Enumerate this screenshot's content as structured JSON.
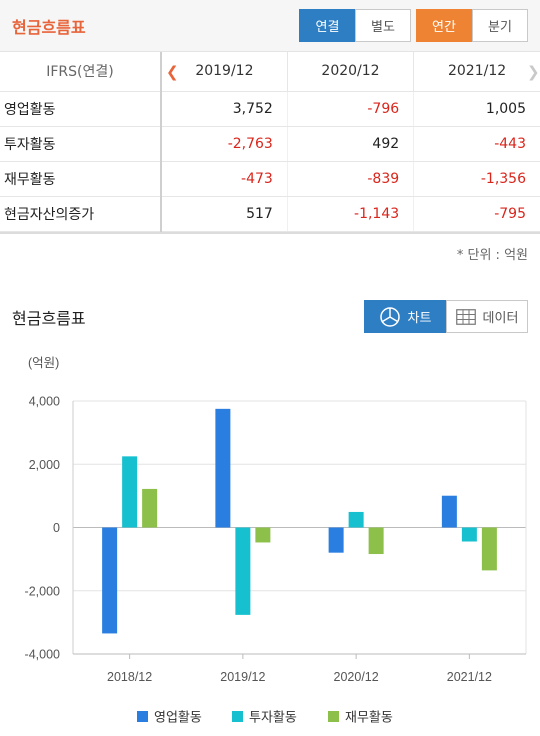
{
  "header": {
    "title": "현금흐름표",
    "consolidation_tabs": [
      {
        "label": "연결",
        "active": true
      },
      {
        "label": "별도",
        "active": false
      }
    ],
    "period_tabs": [
      {
        "label": "연간",
        "active": true
      },
      {
        "label": "분기",
        "active": false
      }
    ]
  },
  "table": {
    "header_label": "IFRS(연결)",
    "columns": [
      "2019/12",
      "2020/12",
      "2021/12"
    ],
    "rows": [
      {
        "label": "영업활동",
        "values": [
          "3,752",
          "-796",
          "1,005"
        ]
      },
      {
        "label": "투자활동",
        "values": [
          "-2,763",
          "492",
          "-443"
        ]
      },
      {
        "label": "재무활동",
        "values": [
          "-473",
          "-839",
          "-1,356"
        ]
      },
      {
        "label": "현금자산의증가",
        "values": [
          "517",
          "-1,143",
          "-795"
        ]
      }
    ],
    "prev_icon": "chevron-left-icon",
    "next_icon": "chevron-right-icon"
  },
  "unit_note": "* 단위 : 억원",
  "chart_section": {
    "title": "현금흐름표",
    "toggle": [
      {
        "label": "차트",
        "icon": "pie-chart-icon",
        "active": true
      },
      {
        "label": "데이터",
        "icon": "table-grid-icon",
        "active": false
      }
    ]
  },
  "colors": {
    "accent_orange": "#ee8433",
    "accent_blue": "#2e7ec4",
    "negative": "#d9261c"
  },
  "chart_data": {
    "type": "bar",
    "title": "",
    "xlabel": "",
    "ylabel": "(억원)",
    "categories": [
      "2018/12",
      "2019/12",
      "2020/12",
      "2021/12"
    ],
    "series": [
      {
        "name": "영업활동",
        "color": "#2a7ee0",
        "values": [
          -3350,
          3752,
          -796,
          1005
        ]
      },
      {
        "name": "투자활동",
        "color": "#17c0cf",
        "values": [
          2250,
          -2763,
          492,
          -443
        ]
      },
      {
        "name": "재무활동",
        "color": "#8cc04a",
        "values": [
          1220,
          -473,
          -839,
          -1356
        ]
      }
    ],
    "ylim": [
      -4000,
      4000
    ],
    "yticks": [
      4000,
      2000,
      0,
      -2000,
      -4000
    ],
    "ytick_labels": [
      "4,000",
      "2,000",
      "0",
      "-2,000",
      "-4,000"
    ],
    "grid": true,
    "legend": "bottom"
  }
}
